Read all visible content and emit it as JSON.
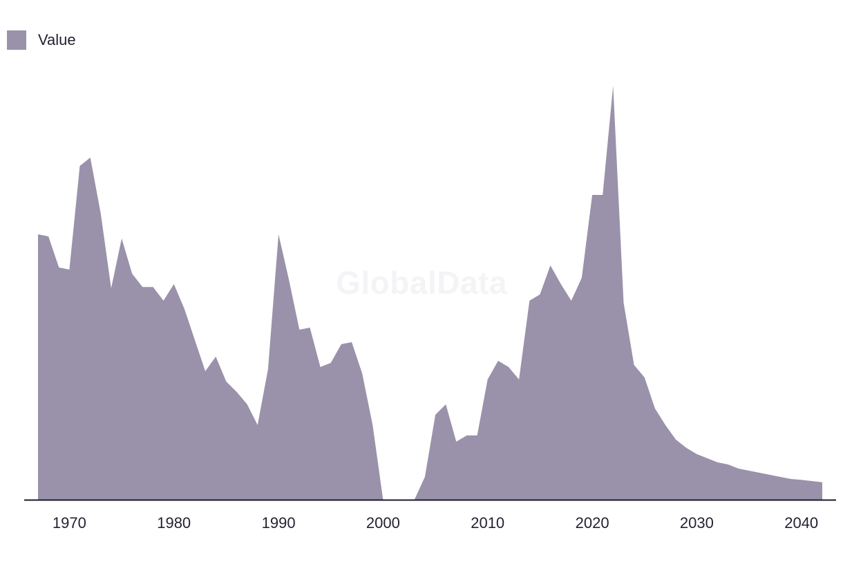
{
  "watermark": "GlobalData",
  "colors": {
    "area": "#9a91aa",
    "axis": "#1a1a2e"
  },
  "chart_data": {
    "type": "area",
    "title": "",
    "xlabel": "",
    "ylabel": "",
    "legend": {
      "position": "top-left",
      "entries": [
        "Value"
      ]
    },
    "grid": false,
    "xlim": [
      1967,
      2042
    ],
    "ylim": [
      0,
      100
    ],
    "x_ticks": [
      1970,
      1980,
      1990,
      2000,
      2010,
      2020,
      2030,
      2040
    ],
    "series": [
      {
        "name": "Value",
        "x": [
          1967,
          1968,
          1969,
          1970,
          1971,
          1972,
          1973,
          1974,
          1975,
          1976,
          1977,
          1978,
          1979,
          1980,
          1981,
          1982,
          1983,
          1984,
          1985,
          1986,
          1987,
          1988,
          1989,
          1990,
          1991,
          1992,
          1993,
          1994,
          1995,
          1996,
          1997,
          1998,
          1999,
          2000,
          2001,
          2002,
          2003,
          2004,
          2005,
          2006,
          2007,
          2008,
          2009,
          2010,
          2011,
          2012,
          2013,
          2014,
          2015,
          2016,
          2017,
          2018,
          2019,
          2020,
          2021,
          2022,
          2023,
          2024,
          2025,
          2026,
          2027,
          2028,
          2029,
          2030,
          2031,
          2032,
          2033,
          2034,
          2035,
          2036,
          2037,
          2038,
          2039,
          2040,
          2041,
          2042
        ],
        "values": [
          64,
          63.5,
          56,
          55.5,
          80.5,
          82.5,
          69,
          51,
          63,
          54.5,
          51.3,
          51.3,
          48,
          52,
          46,
          38.5,
          31,
          34.5,
          28.5,
          26,
          23,
          18,
          31.5,
          64,
          53,
          41,
          41.5,
          32,
          33,
          37.5,
          38,
          30.5,
          18,
          0,
          0,
          0,
          0,
          5.5,
          20.5,
          23,
          14,
          15.5,
          15.5,
          29,
          33.5,
          32,
          29,
          48,
          49.5,
          56.5,
          52,
          48,
          53.5,
          73.5,
          73.5,
          99.8,
          47.5,
          32.5,
          29.5,
          22,
          18,
          14.5,
          12.5,
          11,
          10,
          9,
          8.5,
          7.5,
          7,
          6.5,
          6,
          5.5,
          5,
          4.8,
          4.5,
          4.2
        ]
      }
    ]
  }
}
